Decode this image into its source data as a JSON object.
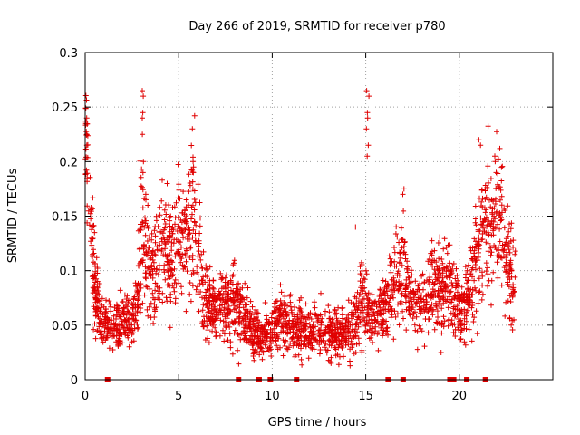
{
  "chart_data": {
    "type": "scatter",
    "title": "Day 266 of 2019, SRMTID for receiver p780",
    "xlabel": "GPS time / hours",
    "ylabel": "SRMTID / TECUs",
    "xlim": [
      0,
      25
    ],
    "ylim": [
      0,
      0.3
    ],
    "x_ticks": [
      0,
      5,
      10,
      15,
      20
    ],
    "x_tick_labels": [
      "0",
      "5",
      "10",
      "15",
      "20"
    ],
    "y_ticks": [
      0,
      0.05,
      0.1,
      0.15,
      0.2,
      0.25,
      0.3
    ],
    "y_tick_labels": [
      "0",
      "0.05",
      "0.1",
      "0.15",
      "0.2",
      "0.25",
      "0.3"
    ],
    "grid": true,
    "marker": "+",
    "color": "#e00000",
    "envelope": [
      [
        0.0,
        0.23,
        0.02
      ],
      [
        0.1,
        0.2,
        0.03
      ],
      [
        0.2,
        0.15,
        0.03
      ],
      [
        0.4,
        0.11,
        0.025
      ],
      [
        0.6,
        0.075,
        0.02
      ],
      [
        0.8,
        0.055,
        0.012
      ],
      [
        1.0,
        0.05,
        0.01
      ],
      [
        1.5,
        0.05,
        0.012
      ],
      [
        2.0,
        0.052,
        0.012
      ],
      [
        2.5,
        0.055,
        0.012
      ],
      [
        2.8,
        0.07,
        0.015
      ],
      [
        3.0,
        0.14,
        0.04
      ],
      [
        3.2,
        0.11,
        0.03
      ],
      [
        3.5,
        0.1,
        0.025
      ],
      [
        3.8,
        0.11,
        0.025
      ],
      [
        4.2,
        0.12,
        0.03
      ],
      [
        4.6,
        0.11,
        0.03
      ],
      [
        5.0,
        0.14,
        0.03
      ],
      [
        5.3,
        0.13,
        0.03
      ],
      [
        5.7,
        0.15,
        0.035
      ],
      [
        6.0,
        0.12,
        0.03
      ],
      [
        6.3,
        0.08,
        0.02
      ],
      [
        6.8,
        0.065,
        0.015
      ],
      [
        7.5,
        0.07,
        0.015
      ],
      [
        8.0,
        0.07,
        0.02
      ],
      [
        8.5,
        0.06,
        0.015
      ],
      [
        9.0,
        0.045,
        0.012
      ],
      [
        9.5,
        0.04,
        0.01
      ],
      [
        10.0,
        0.05,
        0.012
      ],
      [
        10.5,
        0.055,
        0.012
      ],
      [
        11.0,
        0.05,
        0.012
      ],
      [
        11.5,
        0.045,
        0.012
      ],
      [
        12.0,
        0.045,
        0.012
      ],
      [
        12.5,
        0.045,
        0.012
      ],
      [
        13.0,
        0.04,
        0.012
      ],
      [
        13.5,
        0.045,
        0.012
      ],
      [
        14.0,
        0.045,
        0.012
      ],
      [
        14.5,
        0.055,
        0.015
      ],
      [
        14.8,
        0.07,
        0.02
      ],
      [
        15.0,
        0.07,
        0.015
      ],
      [
        15.2,
        0.06,
        0.015
      ],
      [
        15.6,
        0.055,
        0.012
      ],
      [
        16.0,
        0.065,
        0.015
      ],
      [
        16.5,
        0.09,
        0.02
      ],
      [
        17.0,
        0.11,
        0.025
      ],
      [
        17.3,
        0.07,
        0.015
      ],
      [
        18.0,
        0.07,
        0.015
      ],
      [
        18.5,
        0.08,
        0.02
      ],
      [
        19.0,
        0.08,
        0.02
      ],
      [
        19.5,
        0.09,
        0.02
      ],
      [
        19.8,
        0.07,
        0.015
      ],
      [
        20.1,
        0.06,
        0.015
      ],
      [
        20.5,
        0.08,
        0.02
      ],
      [
        21.0,
        0.11,
        0.03
      ],
      [
        21.5,
        0.14,
        0.035
      ],
      [
        22.0,
        0.15,
        0.035
      ],
      [
        22.4,
        0.13,
        0.03
      ],
      [
        22.7,
        0.1,
        0.025
      ],
      [
        23.0,
        0.09,
        0.02
      ]
    ],
    "spikes": [
      {
        "x": 0.05,
        "ys": [
          0.24,
          0.235,
          0.225,
          0.215
        ]
      },
      {
        "x": 3.05,
        "ys": [
          0.265,
          0.26,
          0.245,
          0.24,
          0.225,
          0.2,
          0.19
        ]
      },
      {
        "x": 3.3,
        "ys": [
          0.17,
          0.165,
          0.16
        ]
      },
      {
        "x": 5.8,
        "ys": [
          0.242,
          0.23,
          0.2,
          0.195,
          0.19
        ]
      },
      {
        "x": 15.1,
        "ys": [
          0.265,
          0.26,
          0.245,
          0.24,
          0.23,
          0.215,
          0.205
        ]
      },
      {
        "x": 14.5,
        "ys": [
          0.14
        ]
      },
      {
        "x": 21.1,
        "ys": [
          0.22,
          0.215
        ]
      },
      {
        "x": 21.9,
        "ys": [
          0.205,
          0.2,
          0.19
        ]
      },
      {
        "x": 17.0,
        "ys": [
          0.175,
          0.17
        ]
      }
    ],
    "gap_markers_x": [
      1.2,
      8.2,
      9.3,
      9.9,
      11.3,
      16.2,
      17.0,
      19.5,
      19.7,
      20.4,
      21.4
    ]
  }
}
